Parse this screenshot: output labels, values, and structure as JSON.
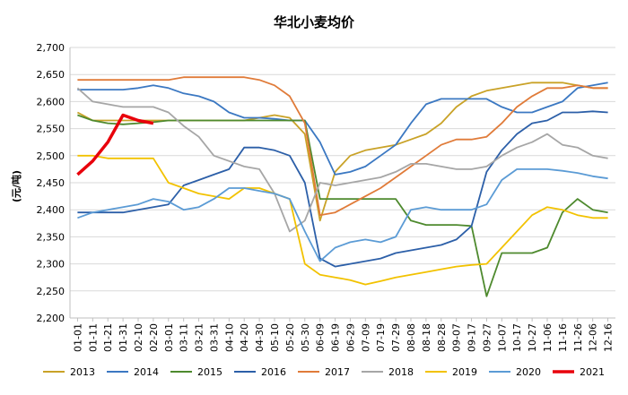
{
  "chart_data": {
    "type": "line",
    "title": "华北小麦均价",
    "ylabel": "(元/吨)",
    "xlabel": "",
    "ylim": [
      2200,
      2700
    ],
    "yticks": [
      "2,200",
      "2,250",
      "2,300",
      "2,350",
      "2,400",
      "2,450",
      "2,500",
      "2,550",
      "2,600",
      "2,650",
      "2,700"
    ],
    "categories": [
      "01-01",
      "01-11",
      "01-21",
      "01-31",
      "02-10",
      "02-20",
      "03-01",
      "03-11",
      "03-21",
      "03-31",
      "04-10",
      "04-20",
      "04-30",
      "05-10",
      "05-20",
      "05-30",
      "06-09",
      "06-19",
      "06-29",
      "07-09",
      "07-19",
      "07-29",
      "08-08",
      "08-18",
      "08-28",
      "09-07",
      "09-17",
      "09-27",
      "10-07",
      "10-17",
      "10-27",
      "11-06",
      "11-16",
      "11-26",
      "12-06",
      "12-16"
    ],
    "grid": true,
    "legend_position": "bottom",
    "series": [
      {
        "name": "2013",
        "color": "#C9A227",
        "values": [
          2580,
          2565,
          2565,
          2565,
          2565,
          2565,
          2565,
          2565,
          2565,
          2565,
          2565,
          2565,
          2570,
          2575,
          2570,
          2540,
          2380,
          2470,
          2500,
          2510,
          2515,
          2520,
          2530,
          2540,
          2560,
          2590,
          2610,
          2620,
          2625,
          2630,
          2635,
          2635,
          2635,
          2630,
          2625,
          2625
        ]
      },
      {
        "name": "2014",
        "color": "#3B78C2",
        "values": [
          2622,
          2622,
          2622,
          2622,
          2625,
          2630,
          2625,
          2615,
          2610,
          2600,
          2580,
          2570,
          2570,
          2568,
          2565,
          2565,
          2525,
          2465,
          2470,
          2480,
          2500,
          2520,
          2560,
          2595,
          2605,
          2605,
          2605,
          2605,
          2590,
          2580,
          2580,
          2590,
          2600,
          2625,
          2630,
          2635
        ]
      },
      {
        "name": "2015",
        "color": "#4E8A2E",
        "values": [
          2575,
          2565,
          2560,
          2558,
          2560,
          2562,
          2565,
          2565,
          2565,
          2565,
          2565,
          2565,
          2565,
          2565,
          2565,
          2565,
          2420,
          2420,
          2420,
          2420,
          2420,
          2420,
          2380,
          2372,
          2372,
          2372,
          2370,
          2240,
          2320,
          2320,
          2320,
          2330,
          2395,
          2420,
          2400,
          2395
        ]
      },
      {
        "name": "2016",
        "color": "#2C5FA8",
        "values": [
          2395,
          2395,
          2395,
          2395,
          2400,
          2405,
          2410,
          2445,
          2455,
          2465,
          2475,
          2515,
          2515,
          2510,
          2500,
          2450,
          2310,
          2295,
          2300,
          2305,
          2310,
          2320,
          2325,
          2330,
          2335,
          2345,
          2370,
          2470,
          2510,
          2540,
          2560,
          2565,
          2580,
          2580,
          2582,
          2580
        ]
      },
      {
        "name": "2017",
        "color": "#E07B39",
        "values": [
          2640,
          2640,
          2640,
          2640,
          2640,
          2640,
          2640,
          2645,
          2645,
          2645,
          2645,
          2645,
          2640,
          2630,
          2610,
          2560,
          2390,
          2395,
          2410,
          2425,
          2440,
          2460,
          2480,
          2500,
          2520,
          2530,
          2530,
          2535,
          2560,
          2590,
          2610,
          2625,
          2625,
          2630,
          2625,
          2625
        ]
      },
      {
        "name": "2018",
        "color": "#A6A6A6",
        "values": [
          2625,
          2600,
          2595,
          2590,
          2590,
          2590,
          2580,
          2555,
          2535,
          2500,
          2490,
          2480,
          2475,
          2430,
          2360,
          2380,
          2450,
          2445,
          2450,
          2455,
          2460,
          2470,
          2485,
          2485,
          2480,
          2475,
          2475,
          2480,
          2500,
          2515,
          2525,
          2540,
          2520,
          2515,
          2500,
          2495
        ]
      },
      {
        "name": "2019",
        "color": "#F2C200",
        "values": [
          2500,
          2500,
          2495,
          2495,
          2495,
          2495,
          2450,
          2440,
          2430,
          2425,
          2420,
          2440,
          2440,
          2430,
          2420,
          2300,
          2280,
          2275,
          2270,
          2262,
          2268,
          2275,
          2280,
          2285,
          2290,
          2295,
          2298,
          2300,
          2330,
          2360,
          2390,
          2405,
          2400,
          2390,
          2385,
          2385
        ]
      },
      {
        "name": "2020",
        "color": "#5B9BD5",
        "values": [
          2385,
          2395,
          2400,
          2405,
          2410,
          2420,
          2415,
          2400,
          2405,
          2420,
          2440,
          2440,
          2435,
          2430,
          2420,
          2360,
          2305,
          2330,
          2340,
          2345,
          2340,
          2350,
          2400,
          2405,
          2400,
          2400,
          2400,
          2410,
          2455,
          2475,
          2475,
          2475,
          2472,
          2468,
          2462,
          2458
        ]
      },
      {
        "name": "2021",
        "color": "#E8000B",
        "values": [
          2465,
          2490,
          2525,
          2575,
          2565,
          2560,
          null,
          null,
          null,
          null,
          null,
          null,
          null,
          null,
          null,
          null,
          null,
          null,
          null,
          null,
          null,
          null,
          null,
          null,
          null,
          null,
          null,
          null,
          null,
          null,
          null,
          null,
          null,
          null,
          null,
          null
        ]
      }
    ]
  }
}
